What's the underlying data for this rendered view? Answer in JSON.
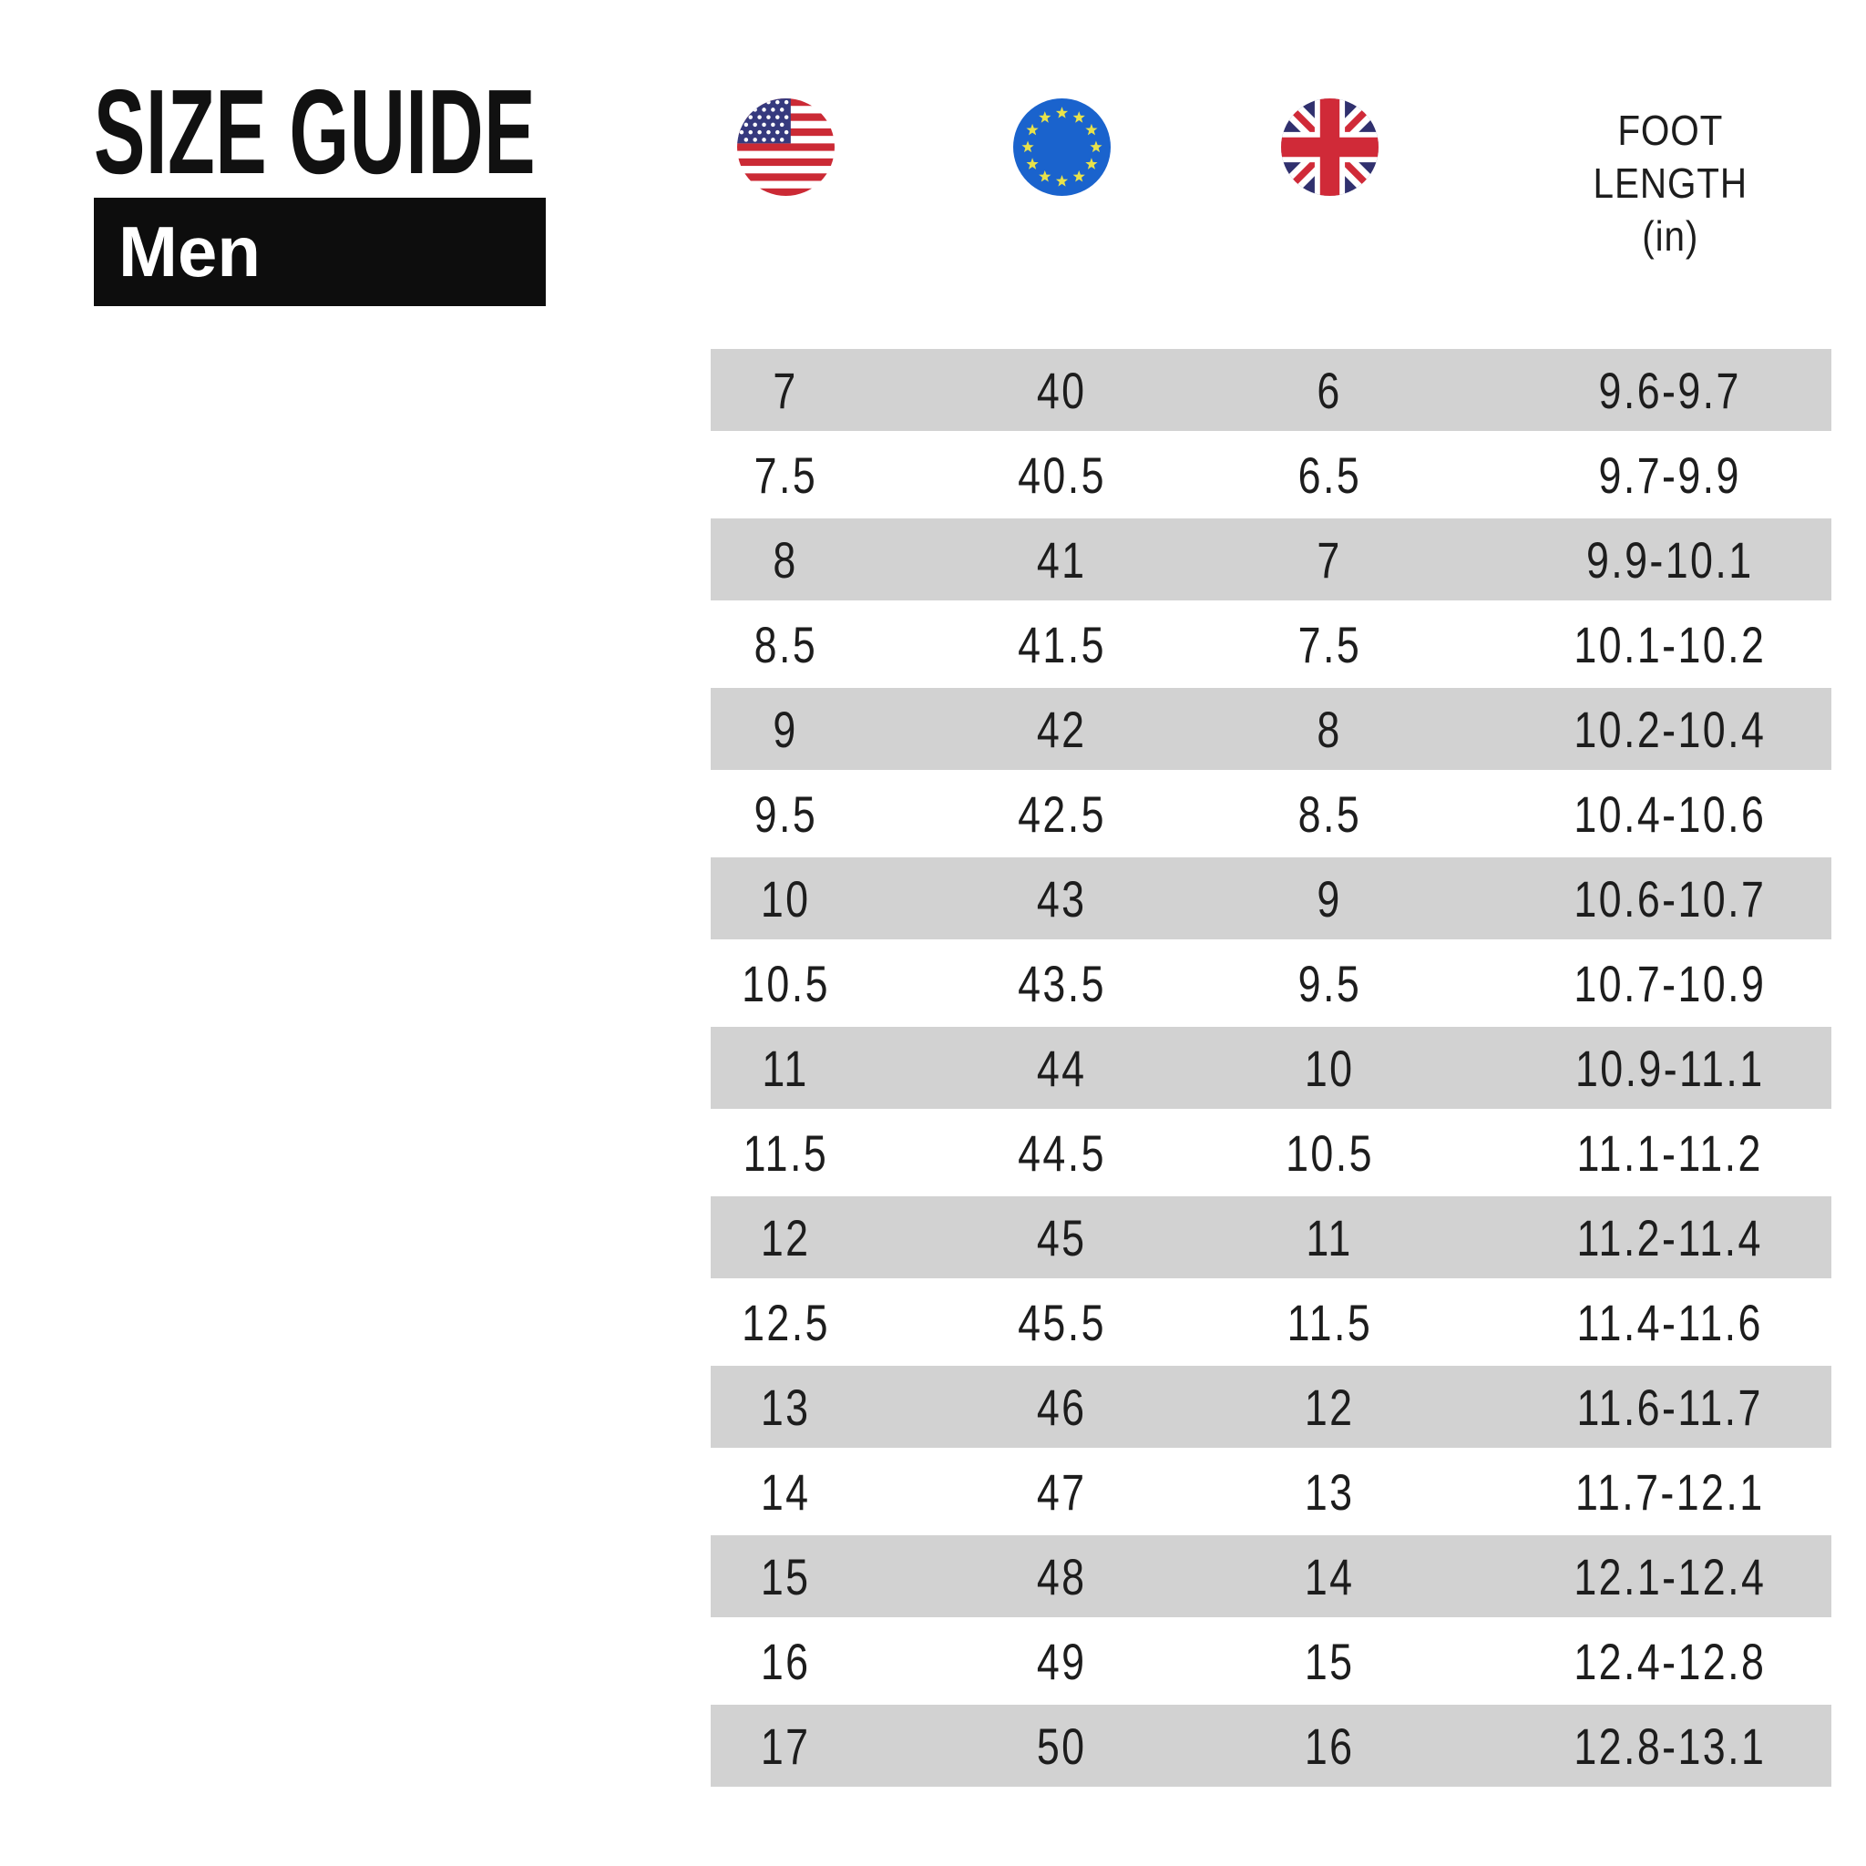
{
  "header": {
    "title": "SIZE GUIDE",
    "category": "Men"
  },
  "table": {
    "columns": [
      {
        "key": "us",
        "header_icon": "us-flag-icon"
      },
      {
        "key": "eu",
        "header_icon": "eu-flag-icon"
      },
      {
        "key": "uk",
        "header_icon": "uk-flag-icon"
      },
      {
        "key": "foot_length_in",
        "label": "FOOT\nLENGTH\n(in)"
      }
    ],
    "rows": [
      {
        "us": "7",
        "eu": "40",
        "uk": "6",
        "foot_length_in": "9.6-9.7"
      },
      {
        "us": "7.5",
        "eu": "40.5",
        "uk": "6.5",
        "foot_length_in": "9.7-9.9"
      },
      {
        "us": "8",
        "eu": "41",
        "uk": "7",
        "foot_length_in": "9.9-10.1"
      },
      {
        "us": "8.5",
        "eu": "41.5",
        "uk": "7.5",
        "foot_length_in": "10.1-10.2"
      },
      {
        "us": "9",
        "eu": "42",
        "uk": "8",
        "foot_length_in": "10.2-10.4"
      },
      {
        "us": "9.5",
        "eu": "42.5",
        "uk": "8.5",
        "foot_length_in": "10.4-10.6"
      },
      {
        "us": "10",
        "eu": "43",
        "uk": "9",
        "foot_length_in": "10.6-10.7"
      },
      {
        "us": "10.5",
        "eu": "43.5",
        "uk": "9.5",
        "foot_length_in": "10.7-10.9"
      },
      {
        "us": "11",
        "eu": "44",
        "uk": "10",
        "foot_length_in": "10.9-11.1"
      },
      {
        "us": "11.5",
        "eu": "44.5",
        "uk": "10.5",
        "foot_length_in": "11.1-11.2"
      },
      {
        "us": "12",
        "eu": "45",
        "uk": "11",
        "foot_length_in": "11.2-11.4"
      },
      {
        "us": "12.5",
        "eu": "45.5",
        "uk": "11.5",
        "foot_length_in": "11.4-11.6"
      },
      {
        "us": "13",
        "eu": "46",
        "uk": "12",
        "foot_length_in": "11.6-11.7"
      },
      {
        "us": "14",
        "eu": "47",
        "uk": "13",
        "foot_length_in": "11.7-12.1"
      },
      {
        "us": "15",
        "eu": "48",
        "uk": "14",
        "foot_length_in": "12.1-12.4"
      },
      {
        "us": "16",
        "eu": "49",
        "uk": "15",
        "foot_length_in": "12.4-12.8"
      },
      {
        "us": "17",
        "eu": "50",
        "uk": "16",
        "foot_length_in": "12.8-13.1"
      }
    ]
  },
  "colors": {
    "page_bg": "#ffffff",
    "text": "#1d1d1d",
    "title": "#111111",
    "badge_bg": "#0d0d0d",
    "badge_text": "#ffffff",
    "row_alt_bg": "#d2d2d2",
    "us_red": "#cb2a35",
    "us_blue": "#363a7e",
    "eu_blue": "#1a63cd",
    "eu_star": "#e8e24a",
    "uk_navy": "#30306e",
    "uk_red": "#d02a38"
  }
}
